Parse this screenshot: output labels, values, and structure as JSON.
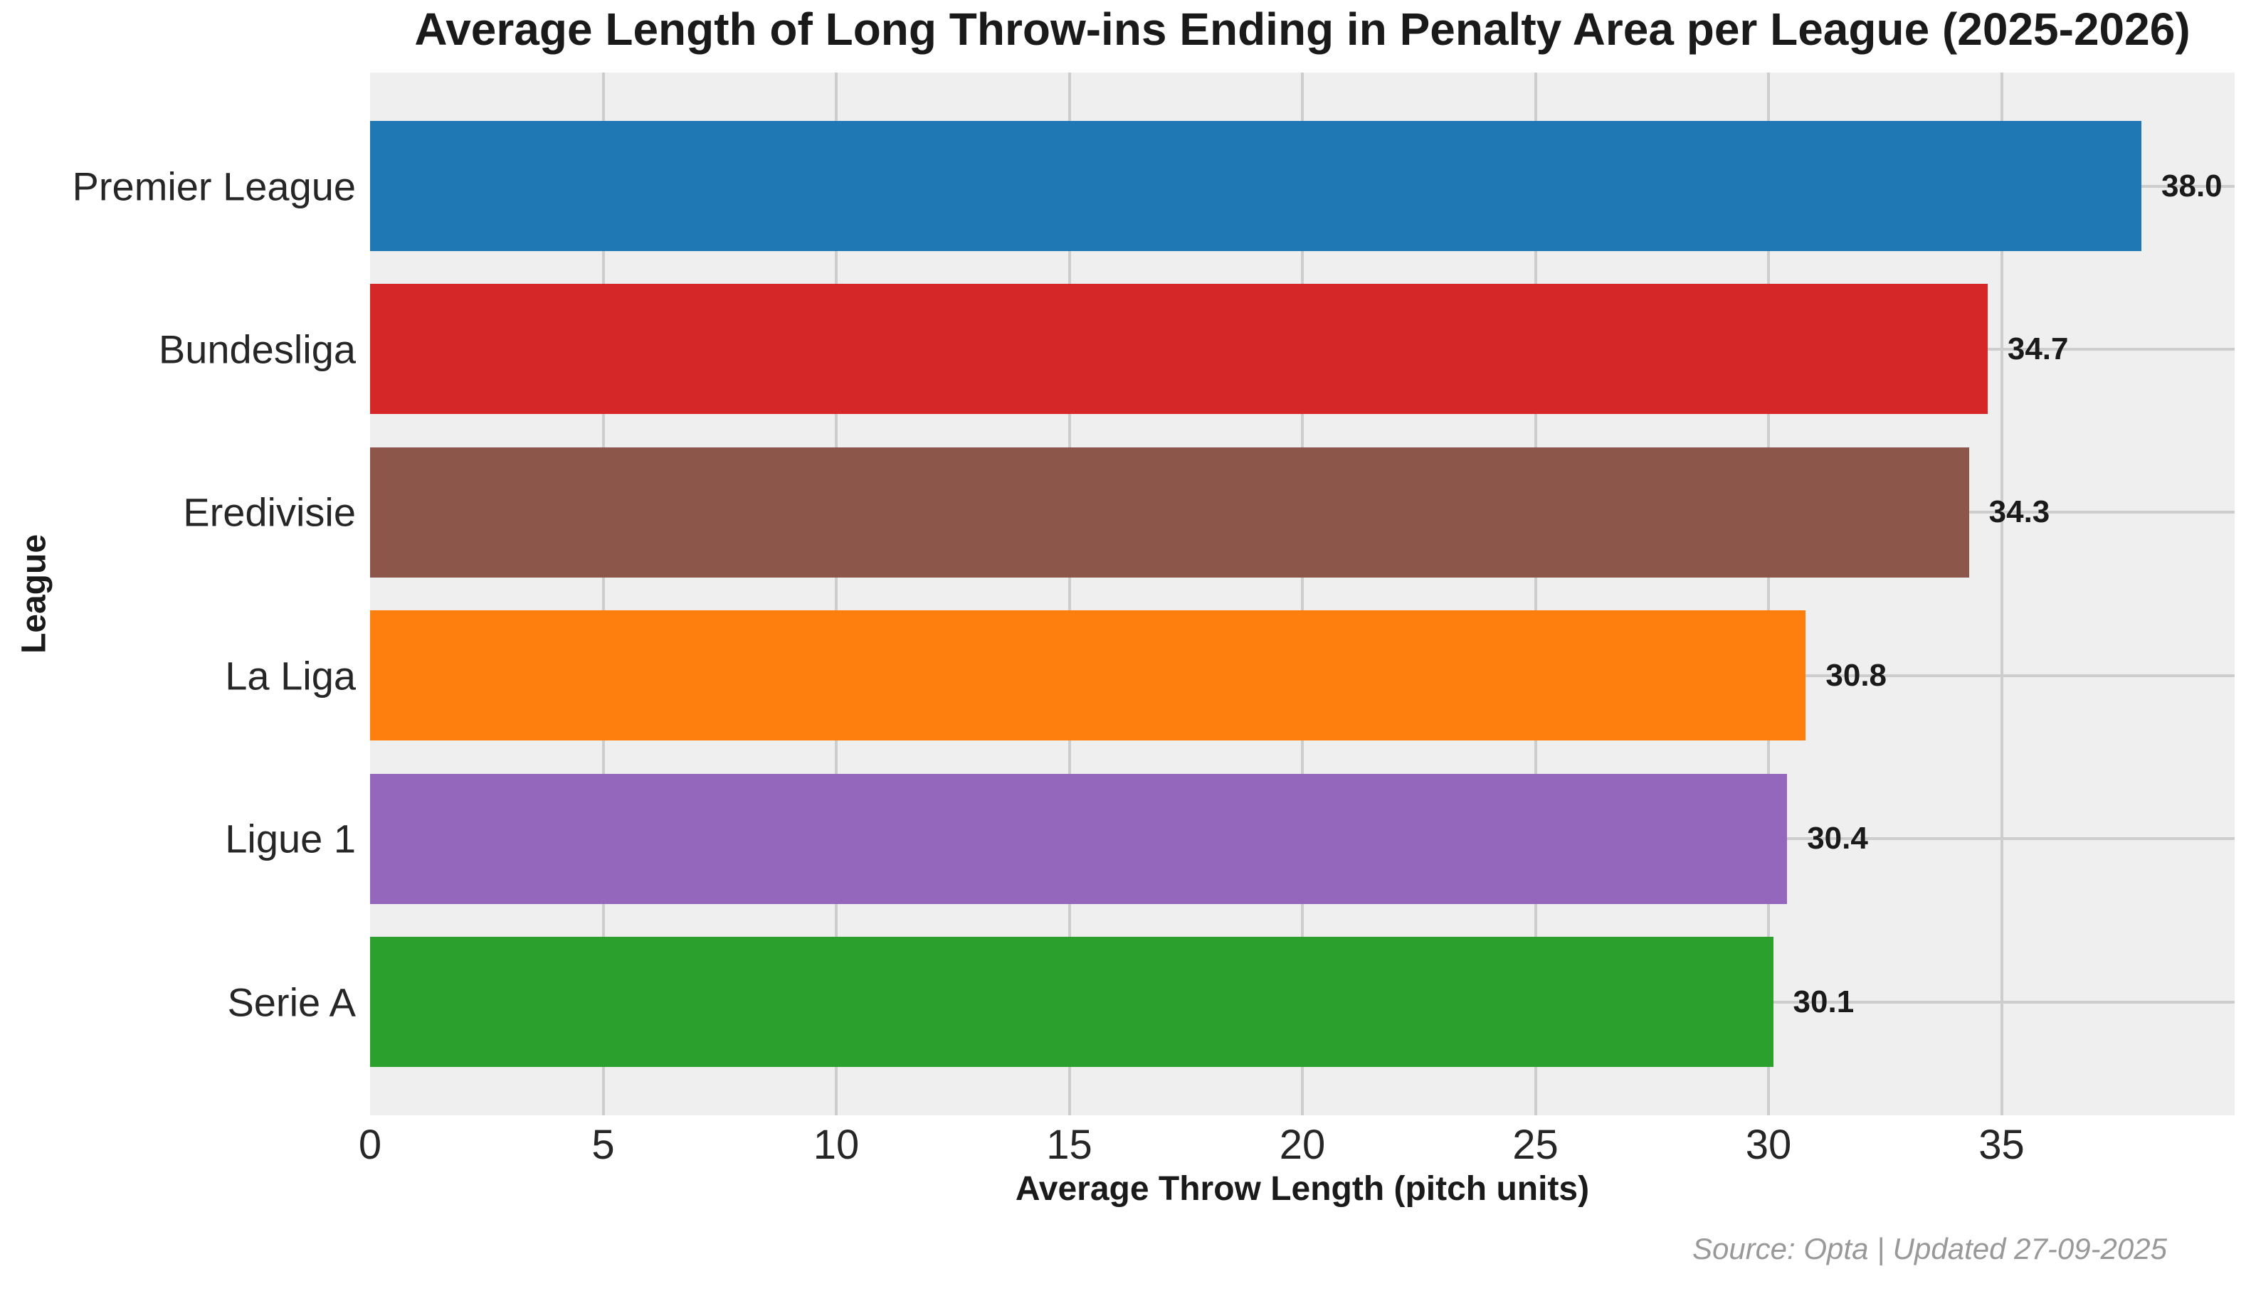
{
  "title": "Average Length of Long Throw-ins Ending in Penalty Area per League (2025-2026)",
  "source_note": "Source: Opta | Updated 27-09-2025",
  "chart_data": {
    "type": "bar",
    "orientation": "horizontal",
    "title": "Average Length of Long Throw-ins Ending in Penalty Area per League (2025-2026)",
    "xlabel": "Average Throw Length (pitch units)",
    "ylabel": "League",
    "categories": [
      "Premier League",
      "Bundesliga",
      "Eredivisie",
      "La Liga",
      "Ligue 1",
      "Serie A"
    ],
    "values": [
      38.0,
      34.7,
      34.3,
      30.8,
      30.4,
      30.1
    ],
    "value_labels": [
      "38.0",
      "34.7",
      "34.3",
      "30.8",
      "30.4",
      "30.1"
    ],
    "bar_colors": [
      "#1f77b4",
      "#d62728",
      "#8c564b",
      "#ff7f0e",
      "#9467bd",
      "#2ca02c"
    ],
    "xlim": [
      0,
      40
    ],
    "xticks": [
      0,
      5,
      10,
      15,
      20,
      25,
      30,
      35
    ],
    "grid": true,
    "legend": false,
    "plot_bg_color": "#efefef",
    "grid_color": "#cdcdcd"
  }
}
